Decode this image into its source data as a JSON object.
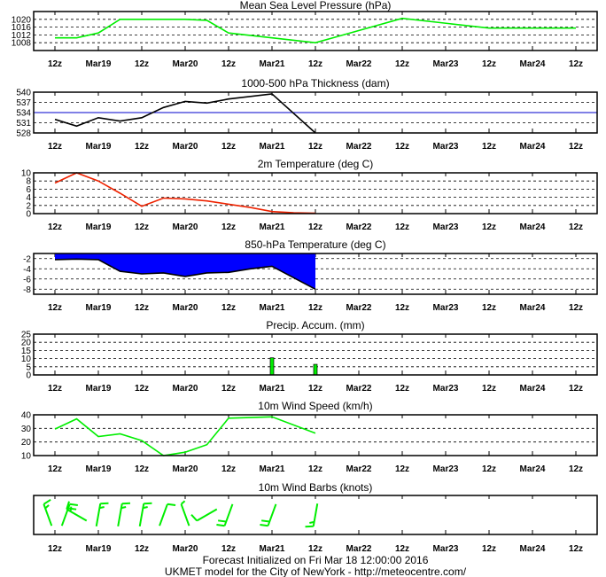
{
  "x_tick_labels": [
    "12z",
    "Mar19",
    "12z",
    "Mar20",
    "12z",
    "Mar21",
    "12z",
    "Mar22",
    "12z",
    "Mar23",
    "12z",
    "Mar24",
    "12z"
  ],
  "footer": {
    "line1": "Forecast Initialized on Fri Mar 18 12:00:00 2016",
    "line2": "UKMET model for the City of NewYork - http://meteocentre.com/"
  },
  "colors": {
    "pressure": "#00ee00",
    "thickness": "#000000",
    "thickness_ref": "#0000cc",
    "temperature_2m": "#ee2200",
    "t850_fill": "#0000ff",
    "precip": "#00ee00",
    "wind_speed": "#00ee00",
    "wind_barbs": "#00ee00"
  },
  "chart_data": [
    {
      "id": "pressure",
      "type": "line",
      "title": "Mean Sea Level Pressure (hPa)",
      "ylim": [
        1004,
        1024
      ],
      "yticks": [
        1008,
        1012,
        1016,
        1020
      ],
      "x": [
        0,
        6,
        12,
        18,
        24,
        30,
        36,
        42,
        48,
        72,
        96,
        120,
        144
      ],
      "series": [
        {
          "values": [
            1010.5,
            1010.5,
            1013,
            1020,
            1020,
            1020,
            1020,
            1019.5,
            1013,
            1008,
            1020.5,
            1015.5,
            1015.5
          ]
        }
      ]
    },
    {
      "id": "thickness",
      "type": "line",
      "title": "1000-500 hPa Thickness (dam)",
      "ylim": [
        528,
        540
      ],
      "yticks": [
        528,
        531,
        534,
        537,
        540
      ],
      "reference_line": 534,
      "x": [
        0,
        6,
        12,
        18,
        24,
        30,
        36,
        42,
        48,
        60,
        72
      ],
      "series": [
        {
          "values": [
            532,
            530,
            532.5,
            531.5,
            532.5,
            535.5,
            537.3,
            536.8,
            538,
            539.5,
            528
          ]
        }
      ]
    },
    {
      "id": "temperature_2m",
      "type": "line",
      "title": "2m Temperature (deg C)",
      "ylim": [
        0,
        10
      ],
      "yticks": [
        0,
        2,
        4,
        6,
        8,
        10
      ],
      "x": [
        0,
        6,
        12,
        18,
        24,
        30,
        36,
        42,
        48,
        54,
        60,
        66,
        72
      ],
      "series": [
        {
          "values": [
            7.5,
            10,
            8,
            5,
            1.8,
            3.8,
            3.6,
            3.1,
            2.3,
            1.5,
            0.5,
            0.2,
            0.1
          ]
        }
      ]
    },
    {
      "id": "t850",
      "type": "area",
      "title": "850-hPa Temperature (deg C)",
      "ylim": [
        -9,
        -1
      ],
      "yticks": [
        -2,
        -4,
        -6,
        -8
      ],
      "x": [
        0,
        6,
        12,
        18,
        24,
        30,
        36,
        42,
        48,
        54,
        60,
        72
      ],
      "series": [
        {
          "values": [
            -2.2,
            -2.1,
            -2.2,
            -4.5,
            -5,
            -4.8,
            -5.5,
            -4.8,
            -4.7,
            -4,
            -3.5,
            -8
          ]
        }
      ]
    },
    {
      "id": "precip",
      "type": "bar",
      "title": "Precip. Accum. (mm)",
      "ylim": [
        0,
        25
      ],
      "yticks": [
        0,
        5,
        10,
        15,
        20,
        25
      ],
      "x": [
        60,
        72
      ],
      "series": [
        {
          "values": [
            10.5,
            6.5
          ]
        }
      ]
    },
    {
      "id": "wind_speed",
      "type": "line",
      "title": "10m Wind Speed (km/h)",
      "ylim": [
        10,
        40
      ],
      "yticks": [
        10,
        20,
        30,
        40
      ],
      "x": [
        0,
        6,
        12,
        18,
        24,
        30,
        36,
        42,
        48,
        60,
        72
      ],
      "series": [
        {
          "values": [
            29.5,
            37,
            24,
            26,
            21,
            10,
            12.5,
            18,
            37.5,
            38.5,
            26.5
          ]
        }
      ]
    },
    {
      "id": "wind_barbs",
      "type": "scatter",
      "title": "10m Wind Barbs  (knots)",
      "x": [
        -2,
        3,
        6,
        12,
        18,
        24,
        30,
        36,
        42,
        48,
        60,
        72
      ],
      "barb_dir_deg": [
        340,
        20,
        300,
        10,
        10,
        10,
        20,
        340,
        240,
        200,
        200,
        190
      ],
      "barb_speed_kt": [
        15,
        20,
        15,
        15,
        15,
        15,
        10,
        5,
        10,
        20,
        20,
        15
      ]
    }
  ]
}
